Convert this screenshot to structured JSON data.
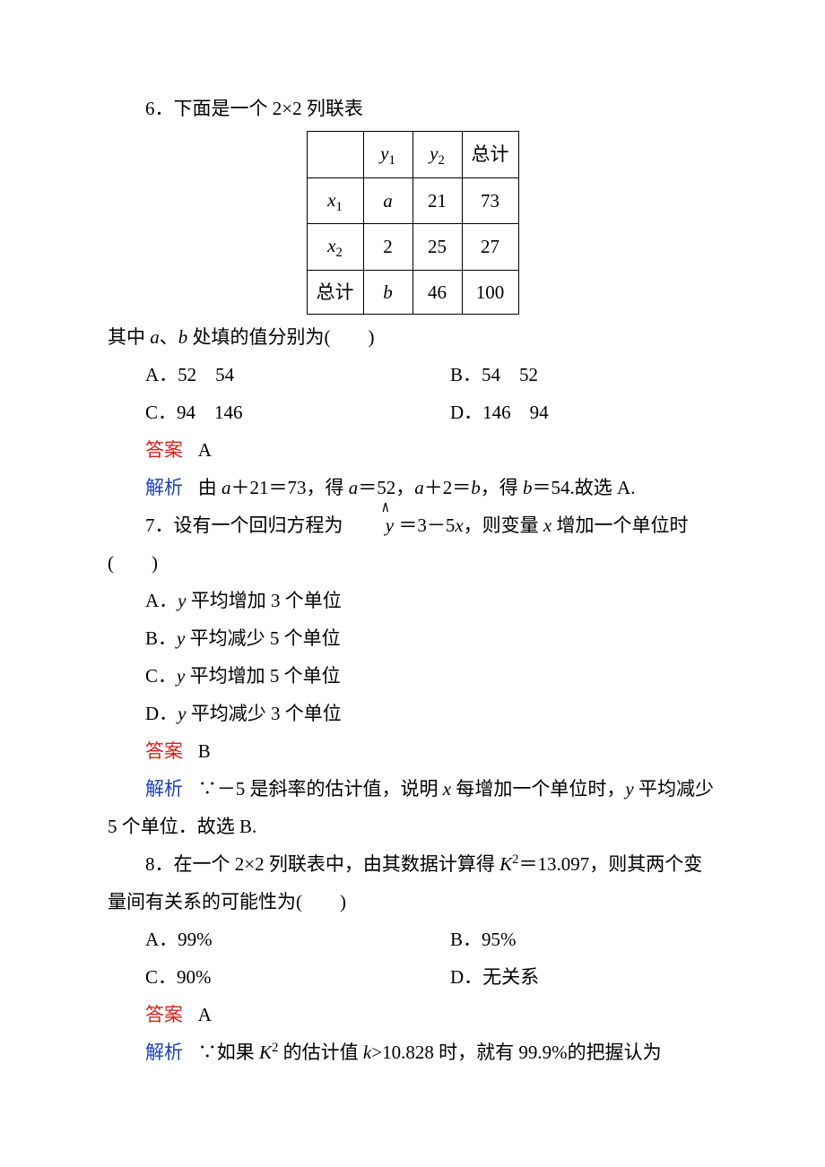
{
  "q6": {
    "stem": "6．下面是一个 2×2 列联表",
    "table": {
      "header": [
        "",
        "y₁",
        "y₂",
        "总计"
      ],
      "rows": [
        [
          "x₁",
          "a",
          "21",
          "73"
        ],
        [
          "x₂",
          "2",
          "25",
          "27"
        ],
        [
          "总计",
          "b",
          "46",
          "100"
        ]
      ]
    },
    "aftertable": "其中 a、b 处填的值分别为(　　)",
    "optA": "A．52　54",
    "optB": "B．54　52",
    "optC": "C．94　146",
    "optD": "D．146　94",
    "answer_label": "答案",
    "answer": "A",
    "analysis_label": "解析",
    "analysis": "由 a＋21＝73，得 a＝52，a＋2＝b，得 b＝54.故选 A."
  },
  "q7": {
    "stem_part1": "7．设有一个回归方程为 ",
    "stem_part2": " ＝3－5x，则变量 x 增加一个单位时",
    "paren": "(　　)",
    "optA": "A．y 平均增加 3 个单位",
    "optB": "B．y 平均减少 5 个单位",
    "optC": "C．y 平均增加 5 个单位",
    "optD": "D．y 平均减少 3 个单位",
    "answer_label": "答案",
    "answer": "B",
    "analysis_label": "解析",
    "analysis": "∵－5 是斜率的估计值，说明 x 每增加一个单位时，y 平均减少 5 个单位．故选 B."
  },
  "q8": {
    "stem": "8．在一个 2×2 列联表中，由其数据计算得 K²＝13.097，则其两个变量间有关系的可能性为(　　)",
    "optA": "A．99%",
    "optB": "B．95%",
    "optC": "C．90%",
    "optD": "D．无关系",
    "answer_label": "答案",
    "answer": "A",
    "analysis_label": "解析",
    "analysis": "∵如果 K² 的估计值 k>10.828 时，就有 99.9%的把握认为"
  },
  "colors": {
    "answer_label": "#d4221a",
    "analysis_label": "#1a3fbf",
    "text": "#000000",
    "background": "#ffffff",
    "table_border": "#000000"
  },
  "typography": {
    "base_fontsize_pt": 16,
    "font_family": "SimSun / 宋体",
    "line_height": 2.0
  }
}
